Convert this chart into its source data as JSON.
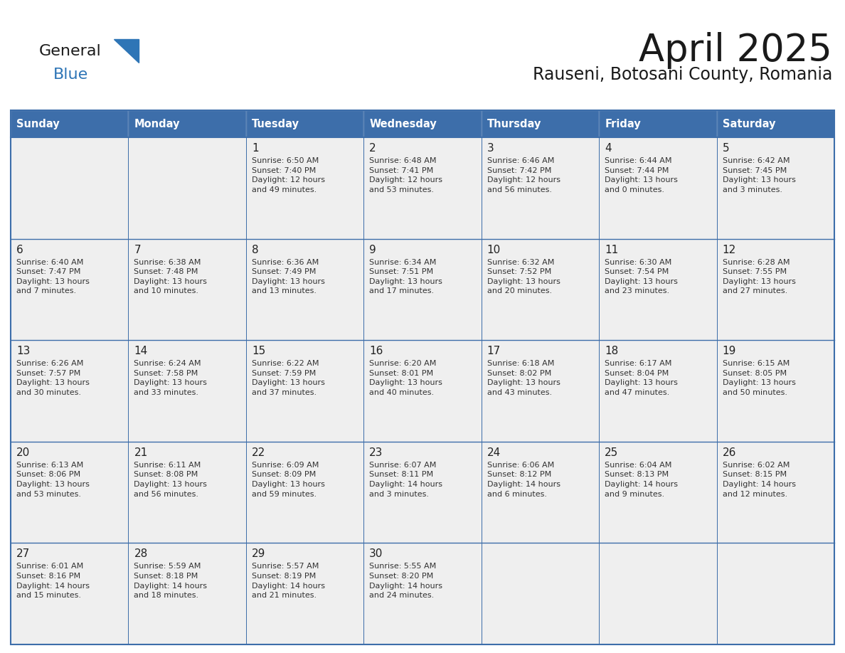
{
  "title": "April 2025",
  "subtitle": "Rauseni, Botosani County, Romania",
  "days_of_week": [
    "Sunday",
    "Monday",
    "Tuesday",
    "Wednesday",
    "Thursday",
    "Friday",
    "Saturday"
  ],
  "header_bg": "#3D6EAA",
  "header_text": "#FFFFFF",
  "cell_bg": "#EFEFEF",
  "border_color": "#3D6EAA",
  "title_color": "#1a1a1a",
  "subtitle_color": "#1a1a1a",
  "cell_text_color": "#333333",
  "day_num_color": "#222222",
  "logo_general_color": "#1a1a1a",
  "logo_blue_color": "#2E75B6",
  "logo_triangle_color": "#2E75B6",
  "weeks": [
    [
      {
        "day": "",
        "text": ""
      },
      {
        "day": "",
        "text": ""
      },
      {
        "day": "1",
        "text": "Sunrise: 6:50 AM\nSunset: 7:40 PM\nDaylight: 12 hours\nand 49 minutes."
      },
      {
        "day": "2",
        "text": "Sunrise: 6:48 AM\nSunset: 7:41 PM\nDaylight: 12 hours\nand 53 minutes."
      },
      {
        "day": "3",
        "text": "Sunrise: 6:46 AM\nSunset: 7:42 PM\nDaylight: 12 hours\nand 56 minutes."
      },
      {
        "day": "4",
        "text": "Sunrise: 6:44 AM\nSunset: 7:44 PM\nDaylight: 13 hours\nand 0 minutes."
      },
      {
        "day": "5",
        "text": "Sunrise: 6:42 AM\nSunset: 7:45 PM\nDaylight: 13 hours\nand 3 minutes."
      }
    ],
    [
      {
        "day": "6",
        "text": "Sunrise: 6:40 AM\nSunset: 7:47 PM\nDaylight: 13 hours\nand 7 minutes."
      },
      {
        "day": "7",
        "text": "Sunrise: 6:38 AM\nSunset: 7:48 PM\nDaylight: 13 hours\nand 10 minutes."
      },
      {
        "day": "8",
        "text": "Sunrise: 6:36 AM\nSunset: 7:49 PM\nDaylight: 13 hours\nand 13 minutes."
      },
      {
        "day": "9",
        "text": "Sunrise: 6:34 AM\nSunset: 7:51 PM\nDaylight: 13 hours\nand 17 minutes."
      },
      {
        "day": "10",
        "text": "Sunrise: 6:32 AM\nSunset: 7:52 PM\nDaylight: 13 hours\nand 20 minutes."
      },
      {
        "day": "11",
        "text": "Sunrise: 6:30 AM\nSunset: 7:54 PM\nDaylight: 13 hours\nand 23 minutes."
      },
      {
        "day": "12",
        "text": "Sunrise: 6:28 AM\nSunset: 7:55 PM\nDaylight: 13 hours\nand 27 minutes."
      }
    ],
    [
      {
        "day": "13",
        "text": "Sunrise: 6:26 AM\nSunset: 7:57 PM\nDaylight: 13 hours\nand 30 minutes."
      },
      {
        "day": "14",
        "text": "Sunrise: 6:24 AM\nSunset: 7:58 PM\nDaylight: 13 hours\nand 33 minutes."
      },
      {
        "day": "15",
        "text": "Sunrise: 6:22 AM\nSunset: 7:59 PM\nDaylight: 13 hours\nand 37 minutes."
      },
      {
        "day": "16",
        "text": "Sunrise: 6:20 AM\nSunset: 8:01 PM\nDaylight: 13 hours\nand 40 minutes."
      },
      {
        "day": "17",
        "text": "Sunrise: 6:18 AM\nSunset: 8:02 PM\nDaylight: 13 hours\nand 43 minutes."
      },
      {
        "day": "18",
        "text": "Sunrise: 6:17 AM\nSunset: 8:04 PM\nDaylight: 13 hours\nand 47 minutes."
      },
      {
        "day": "19",
        "text": "Sunrise: 6:15 AM\nSunset: 8:05 PM\nDaylight: 13 hours\nand 50 minutes."
      }
    ],
    [
      {
        "day": "20",
        "text": "Sunrise: 6:13 AM\nSunset: 8:06 PM\nDaylight: 13 hours\nand 53 minutes."
      },
      {
        "day": "21",
        "text": "Sunrise: 6:11 AM\nSunset: 8:08 PM\nDaylight: 13 hours\nand 56 minutes."
      },
      {
        "day": "22",
        "text": "Sunrise: 6:09 AM\nSunset: 8:09 PM\nDaylight: 13 hours\nand 59 minutes."
      },
      {
        "day": "23",
        "text": "Sunrise: 6:07 AM\nSunset: 8:11 PM\nDaylight: 14 hours\nand 3 minutes."
      },
      {
        "day": "24",
        "text": "Sunrise: 6:06 AM\nSunset: 8:12 PM\nDaylight: 14 hours\nand 6 minutes."
      },
      {
        "day": "25",
        "text": "Sunrise: 6:04 AM\nSunset: 8:13 PM\nDaylight: 14 hours\nand 9 minutes."
      },
      {
        "day": "26",
        "text": "Sunrise: 6:02 AM\nSunset: 8:15 PM\nDaylight: 14 hours\nand 12 minutes."
      }
    ],
    [
      {
        "day": "27",
        "text": "Sunrise: 6:01 AM\nSunset: 8:16 PM\nDaylight: 14 hours\nand 15 minutes."
      },
      {
        "day": "28",
        "text": "Sunrise: 5:59 AM\nSunset: 8:18 PM\nDaylight: 14 hours\nand 18 minutes."
      },
      {
        "day": "29",
        "text": "Sunrise: 5:57 AM\nSunset: 8:19 PM\nDaylight: 14 hours\nand 21 minutes."
      },
      {
        "day": "30",
        "text": "Sunrise: 5:55 AM\nSunset: 8:20 PM\nDaylight: 14 hours\nand 24 minutes."
      },
      {
        "day": "",
        "text": ""
      },
      {
        "day": "",
        "text": ""
      },
      {
        "day": "",
        "text": ""
      }
    ]
  ]
}
